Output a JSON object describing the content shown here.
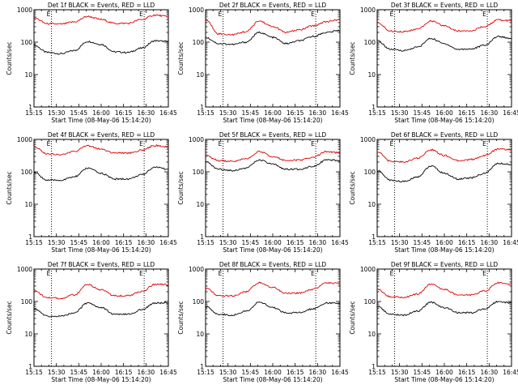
{
  "chart_data": [
    {
      "type": "line",
      "title": "Det 1f BLACK = Events, RED = LLD",
      "xlabel": "Start Time (08-May-06 15:14:20)",
      "ylabel": "Counts/sec",
      "yscale": "log",
      "ylim": [
        1,
        1000
      ],
      "xlim": [
        0,
        100
      ],
      "xticks": [
        "15:15",
        "15:30",
        "15:45",
        "16:00",
        "16:15",
        "16:30",
        "16:45"
      ],
      "yticks": [
        "1",
        "10",
        "100",
        "1000"
      ],
      "markers": [
        {
          "label": "E",
          "x": 13
        },
        {
          "label": "E",
          "x": 82
        }
      ],
      "series": [
        {
          "name": "Events",
          "color": "#000000",
          "x": [
            0,
            10,
            20,
            30,
            40,
            50,
            60,
            70,
            80,
            90,
            100
          ],
          "values": [
            80,
            48,
            44,
            55,
            105,
            85,
            50,
            48,
            65,
            110,
            105
          ]
        },
        {
          "name": "LLD",
          "color": "#dd0000",
          "x": [
            0,
            10,
            20,
            30,
            40,
            50,
            60,
            70,
            80,
            90,
            100
          ],
          "values": [
            560,
            370,
            360,
            420,
            620,
            500,
            380,
            380,
            500,
            680,
            620
          ]
        }
      ]
    },
    {
      "type": "line",
      "title": "Det 2f BLACK = Events, RED = LLD",
      "xlabel": "Start Time (08-May-06 15:14:20)",
      "ylabel": "Counts/sec",
      "yscale": "log",
      "ylim": [
        1,
        1000
      ],
      "xlim": [
        0,
        100
      ],
      "xticks": [
        "15:15",
        "15:30",
        "15:45",
        "16:00",
        "16:15",
        "16:30",
        "16:45"
      ],
      "yticks": [
        "1",
        "10",
        "100",
        "1000"
      ],
      "markers": [
        {
          "label": "E",
          "x": 13
        },
        {
          "label": "E",
          "x": 82
        }
      ],
      "series": [
        {
          "name": "Events",
          "color": "#000000",
          "x": [
            0,
            10,
            20,
            30,
            40,
            50,
            60,
            70,
            80,
            90,
            100
          ],
          "values": [
            140,
            90,
            85,
            100,
            200,
            140,
            90,
            110,
            150,
            200,
            230
          ]
        },
        {
          "name": "LLD",
          "color": "#dd0000",
          "x": [
            0,
            10,
            20,
            30,
            40,
            50,
            60,
            70,
            80,
            90,
            100
          ],
          "values": [
            480,
            180,
            170,
            210,
            450,
            300,
            200,
            240,
            320,
            430,
            500
          ]
        }
      ]
    },
    {
      "type": "line",
      "title": "Det 3f BLACK = Events, RED = LLD",
      "xlabel": "Start Time (08-May-06 15:14:20)",
      "ylabel": "Counts/sec",
      "yscale": "log",
      "ylim": [
        1,
        1000
      ],
      "xlim": [
        0,
        100
      ],
      "xticks": [
        "15:15",
        "15:30",
        "15:45",
        "16:00",
        "16:15",
        "16:30",
        "16:45"
      ],
      "yticks": [
        "1",
        "10",
        "100",
        "1000"
      ],
      "markers": [
        {
          "label": "E",
          "x": 13
        },
        {
          "label": "E",
          "x": 82
        }
      ],
      "series": [
        {
          "name": "Events",
          "color": "#000000",
          "x": [
            0,
            10,
            20,
            30,
            40,
            50,
            60,
            70,
            80,
            90,
            100
          ],
          "values": [
            110,
            60,
            55,
            70,
            130,
            90,
            60,
            62,
            80,
            150,
            130
          ]
        },
        {
          "name": "LLD",
          "color": "#dd0000",
          "x": [
            0,
            10,
            20,
            30,
            40,
            50,
            60,
            70,
            80,
            90,
            100
          ],
          "values": [
            400,
            220,
            210,
            250,
            450,
            320,
            220,
            230,
            300,
            480,
            450
          ]
        }
      ]
    },
    {
      "type": "line",
      "title": "Det 4f BLACK = Events, RED = LLD",
      "xlabel": "Start Time (08-May-06 15:14:20)",
      "ylabel": "Counts/sec",
      "yscale": "log",
      "ylim": [
        1,
        1000
      ],
      "xlim": [
        0,
        100
      ],
      "xticks": [
        "15:15",
        "15:30",
        "15:45",
        "16:00",
        "16:15",
        "16:30",
        "16:45"
      ],
      "yticks": [
        "1",
        "10",
        "100",
        "1000"
      ],
      "markers": [
        {
          "label": "E",
          "x": 13
        },
        {
          "label": "E",
          "x": 82
        }
      ],
      "series": [
        {
          "name": "Events",
          "color": "#000000",
          "x": [
            0,
            10,
            20,
            30,
            40,
            50,
            60,
            70,
            80,
            90,
            100
          ],
          "values": [
            95,
            55,
            55,
            70,
            130,
            90,
            60,
            60,
            80,
            140,
            120
          ]
        },
        {
          "name": "LLD",
          "color": "#dd0000",
          "x": [
            0,
            10,
            20,
            30,
            40,
            50,
            60,
            70,
            80,
            90,
            100
          ],
          "values": [
            600,
            360,
            340,
            420,
            650,
            500,
            380,
            380,
            460,
            650,
            580
          ]
        }
      ]
    },
    {
      "type": "line",
      "title": "Det 5f BLACK = Events, RED = LLD",
      "xlabel": "Start Time (08-May-06 15:14:20)",
      "ylabel": "Counts/sec",
      "yscale": "log",
      "ylim": [
        1,
        1000
      ],
      "xlim": [
        0,
        100
      ],
      "xticks": [
        "15:15",
        "15:30",
        "15:45",
        "16:00",
        "16:15",
        "16:30",
        "16:45"
      ],
      "yticks": [
        "1",
        "10",
        "100",
        "1000"
      ],
      "markers": [
        {
          "label": "E",
          "x": 13
        },
        {
          "label": "E",
          "x": 82
        }
      ],
      "series": [
        {
          "name": "Events",
          "color": "#000000",
          "x": [
            0,
            10,
            20,
            30,
            40,
            50,
            60,
            70,
            80,
            90,
            100
          ],
          "values": [
            200,
            120,
            110,
            130,
            230,
            170,
            120,
            120,
            150,
            230,
            220
          ]
        },
        {
          "name": "LLD",
          "color": "#dd0000",
          "x": [
            0,
            10,
            20,
            30,
            40,
            50,
            60,
            70,
            80,
            90,
            100
          ],
          "values": [
            320,
            220,
            210,
            250,
            420,
            300,
            220,
            230,
            280,
            420,
            380
          ]
        }
      ]
    },
    {
      "type": "line",
      "title": "Det 6f BLACK = Events, RED = LLD",
      "xlabel": "Start Time (08-May-06 15:14:20)",
      "ylabel": "Counts/sec",
      "yscale": "log",
      "ylim": [
        1,
        1000
      ],
      "xlim": [
        0,
        100
      ],
      "xticks": [
        "15:15",
        "15:30",
        "15:45",
        "16:00",
        "16:15",
        "16:30",
        "16:45"
      ],
      "yticks": [
        "1",
        "10",
        "100",
        "1000"
      ],
      "markers": [
        {
          "label": "E",
          "x": 13
        },
        {
          "label": "E",
          "x": 82
        }
      ],
      "series": [
        {
          "name": "Events",
          "color": "#000000",
          "x": [
            0,
            10,
            20,
            30,
            40,
            50,
            60,
            70,
            80,
            90,
            100
          ],
          "values": [
            110,
            55,
            50,
            70,
            150,
            90,
            60,
            65,
            90,
            180,
            170
          ]
        },
        {
          "name": "LLD",
          "color": "#dd0000",
          "x": [
            0,
            10,
            20,
            30,
            40,
            50,
            60,
            70,
            80,
            90,
            100
          ],
          "values": [
            420,
            210,
            200,
            260,
            480,
            320,
            220,
            240,
            320,
            500,
            480
          ]
        }
      ]
    },
    {
      "type": "line",
      "title": "Det 7f BLACK = Events, RED = LLD",
      "xlabel": "Start Time (08-May-06 15:14:20)",
      "ylabel": "Counts/sec",
      "yscale": "log",
      "ylim": [
        1,
        1000
      ],
      "xlim": [
        0,
        100
      ],
      "xticks": [
        "15:15",
        "15:30",
        "15:45",
        "16:00",
        "16:15",
        "16:30",
        "16:45"
      ],
      "yticks": [
        "1",
        "10",
        "100",
        "1000"
      ],
      "markers": [
        {
          "label": "E",
          "x": 13
        },
        {
          "label": "E",
          "x": 82
        }
      ],
      "series": [
        {
          "name": "Events",
          "color": "#000000",
          "x": [
            0,
            10,
            20,
            30,
            40,
            50,
            60,
            70,
            80,
            90,
            100
          ],
          "values": [
            60,
            35,
            35,
            45,
            90,
            65,
            40,
            40,
            55,
            90,
            90
          ]
        },
        {
          "name": "LLD",
          "color": "#dd0000",
          "x": [
            0,
            10,
            20,
            30,
            40,
            50,
            60,
            70,
            80,
            90,
            100
          ],
          "values": [
            220,
            130,
            125,
            160,
            330,
            230,
            150,
            150,
            200,
            340,
            330
          ]
        }
      ]
    },
    {
      "type": "line",
      "title": "Det 8f BLACK = Events, RED = LLD",
      "xlabel": "Start Time (08-May-06 15:14:20)",
      "ylabel": "Counts/sec",
      "yscale": "log",
      "ylim": [
        1,
        1000
      ],
      "xlim": [
        0,
        100
      ],
      "xticks": [
        "15:15",
        "15:30",
        "15:45",
        "16:00",
        "16:15",
        "16:30",
        "16:45"
      ],
      "yticks": [
        "1",
        "10",
        "100",
        "1000"
      ],
      "markers": [
        {
          "label": "E",
          "x": 13
        },
        {
          "label": "E",
          "x": 82
        }
      ],
      "series": [
        {
          "name": "Events",
          "color": "#000000",
          "x": [
            0,
            10,
            20,
            30,
            40,
            50,
            60,
            70,
            80,
            90,
            100
          ],
          "values": [
            70,
            40,
            38,
            50,
            95,
            65,
            45,
            45,
            60,
            90,
            88
          ]
        },
        {
          "name": "LLD",
          "color": "#dd0000",
          "x": [
            0,
            10,
            20,
            30,
            40,
            50,
            60,
            70,
            80,
            90,
            100
          ],
          "values": [
            260,
            150,
            150,
            200,
            380,
            270,
            180,
            180,
            240,
            380,
            360
          ]
        }
      ]
    },
    {
      "type": "line",
      "title": "Det 9f BLACK = Events, RED = LLD",
      "xlabel": "Start Time (08-May-06 15:14:20)",
      "ylabel": "Counts/sec",
      "yscale": "log",
      "ylim": [
        1,
        1000
      ],
      "xlim": [
        0,
        100
      ],
      "xticks": [
        "15:15",
        "15:30",
        "15:45",
        "16:00",
        "16:15",
        "16:30",
        "16:45"
      ],
      "yticks": [
        "1",
        "10",
        "100",
        "1000"
      ],
      "markers": [
        {
          "label": "E",
          "x": 13
        },
        {
          "label": "E",
          "x": 82
        }
      ],
      "series": [
        {
          "name": "Events",
          "color": "#000000",
          "x": [
            0,
            10,
            20,
            30,
            40,
            50,
            60,
            70,
            80,
            90,
            100
          ],
          "values": [
            70,
            40,
            38,
            50,
            95,
            65,
            45,
            45,
            60,
            100,
            90
          ]
        },
        {
          "name": "LLD",
          "color": "#dd0000",
          "x": [
            0,
            10,
            20,
            30,
            40,
            50,
            60,
            70,
            80,
            90,
            100
          ],
          "values": [
            240,
            140,
            135,
            170,
            340,
            240,
            160,
            160,
            210,
            380,
            340
          ]
        }
      ]
    }
  ]
}
